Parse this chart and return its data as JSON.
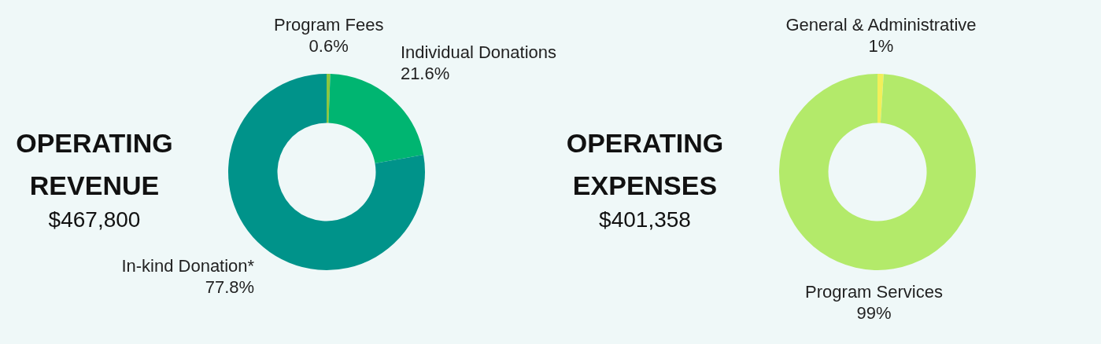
{
  "chart_data": [
    {
      "type": "donut",
      "title": "OPERATING REVENUE",
      "subtitle": "$467,800",
      "categories": [
        "Program Fees",
        "Individual Donations",
        "In-kind Donation*"
      ],
      "values": [
        0.6,
        21.6,
        77.8
      ],
      "value_labels": [
        "0.6%",
        "21.6%",
        "77.8%"
      ],
      "colors": [
        "#8cc63f",
        "#00b571",
        "#00938a"
      ],
      "legend": false
    },
    {
      "type": "donut",
      "title": "OPERATING EXPENSES",
      "subtitle": "$401,358",
      "categories": [
        "General & Administrative",
        "Program Services"
      ],
      "values": [
        1,
        99
      ],
      "value_labels": [
        "1%",
        "99%"
      ],
      "colors": [
        "#f2ef5a",
        "#b3ea6a"
      ],
      "legend": false
    }
  ]
}
